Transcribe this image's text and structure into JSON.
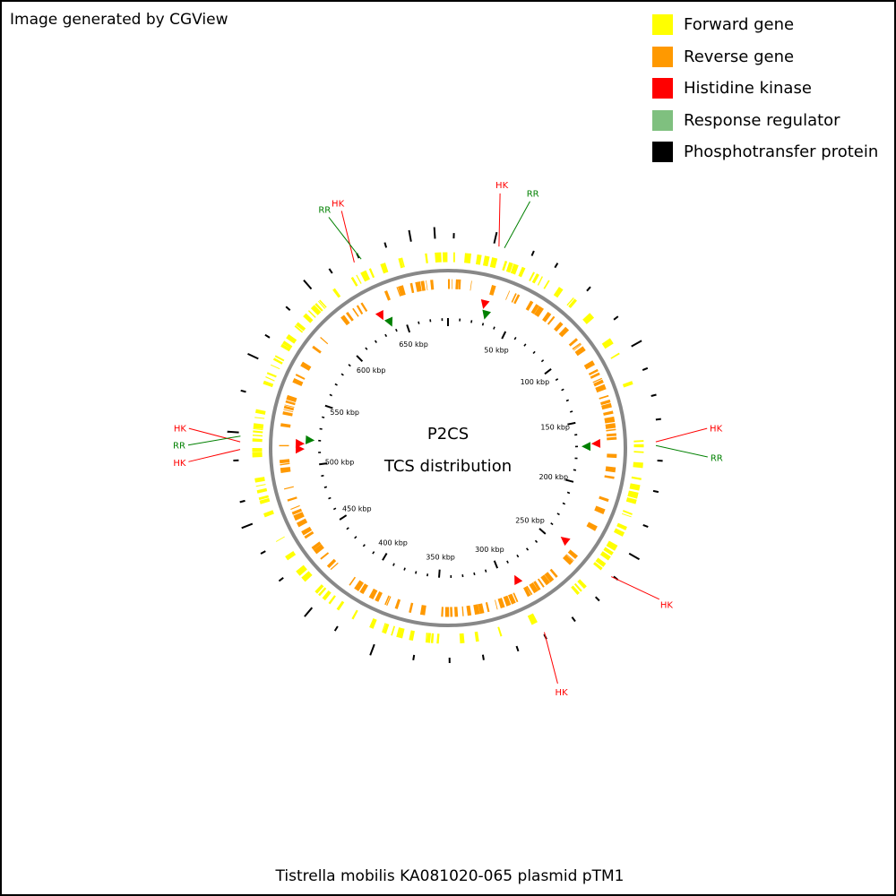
{
  "credit": "Image generated by CGView",
  "legend": [
    {
      "label": "Forward gene",
      "color": "#ffff00"
    },
    {
      "label": "Reverse gene",
      "color": "#ff9900"
    },
    {
      "label": "Histidine kinase",
      "color": "#ff0000"
    },
    {
      "label": "Response regulator",
      "color": "#7fc07f"
    },
    {
      "label": "Phosphotransfer protein",
      "color": "#000000"
    }
  ],
  "center_title": [
    "P2CS",
    "TCS distribution"
  ],
  "caption": "Tistrella mobilis KA081020-065 plasmid pTM1",
  "colors": {
    "forward": "#ffff00",
    "reverse": "#ff9900",
    "backbone": "#888888",
    "hk_label": "#ff0000",
    "rr_label": "#008000",
    "hk_marker": "#ff0000",
    "rr_marker": "#008000"
  },
  "map": {
    "length_kbp": 685,
    "tick_labels": [
      {
        "kbp": 50,
        "text": "50 kbp"
      },
      {
        "kbp": 100,
        "text": "100 kbp"
      },
      {
        "kbp": 150,
        "text": "150 kbp"
      },
      {
        "kbp": 200,
        "text": "200 kbp"
      },
      {
        "kbp": 250,
        "text": "250 kbp"
      },
      {
        "kbp": 300,
        "text": "300 kbp"
      },
      {
        "kbp": 350,
        "text": "350 kbp"
      },
      {
        "kbp": 400,
        "text": "400 kbp"
      },
      {
        "kbp": 450,
        "text": "450 kbp"
      },
      {
        "kbp": 500,
        "text": "500 kbp"
      },
      {
        "kbp": 550,
        "text": "550 kbp"
      },
      {
        "kbp": 600,
        "text": "600 kbp"
      },
      {
        "kbp": 650,
        "text": "650 kbp"
      }
    ],
    "tcs_genes": [
      {
        "kbp": 27,
        "type": "HK",
        "label": "HK"
      },
      {
        "kbp": 30,
        "type": "RR",
        "label": "RR"
      },
      {
        "kbp": 168,
        "type": "HK",
        "label": "HK"
      },
      {
        "kbp": 170,
        "type": "RR",
        "label": "RR"
      },
      {
        "kbp": 244,
        "type": "HK",
        "label": "HK"
      },
      {
        "kbp": 290,
        "type": "HK",
        "label": "HK"
      },
      {
        "kbp": 513,
        "type": "HK",
        "label": "HK"
      },
      {
        "kbp": 517,
        "type": "HK",
        "label": "HK"
      },
      {
        "kbp": 520,
        "type": "RR",
        "label": "RR"
      },
      {
        "kbp": 634,
        "type": "HK",
        "label": "HK"
      },
      {
        "kbp": 638,
        "type": "RR",
        "label": "RR"
      }
    ]
  }
}
